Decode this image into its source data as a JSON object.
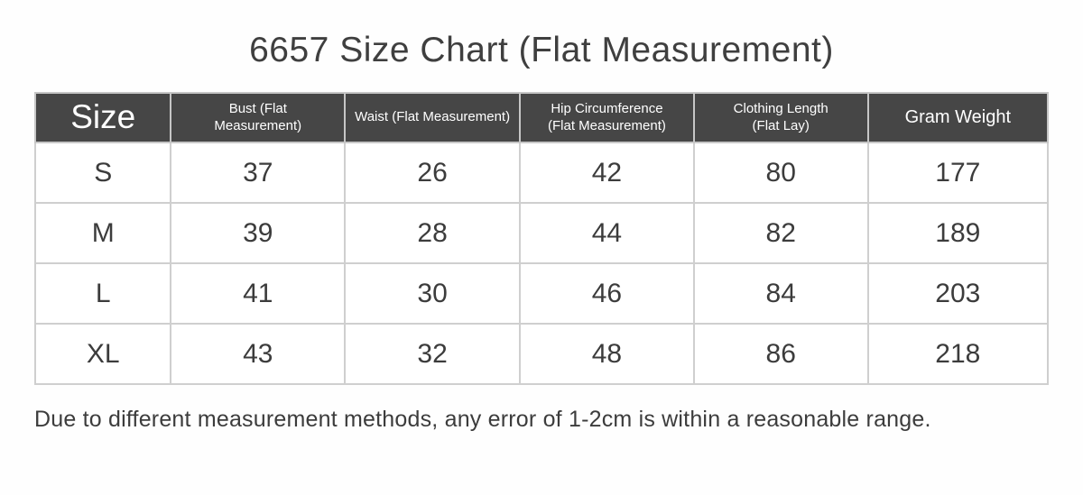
{
  "chart_data": {
    "type": "table",
    "title": "6657 Size Chart (Flat Measurement)",
    "columns": [
      "Size",
      "Bust (Flat Measurement)",
      "Waist (Flat Measurement)",
      "Hip Circumference (Flat Measurement)",
      "Clothing Length (Flat Lay)",
      "Gram Weight"
    ],
    "header_display": [
      "Size",
      "Bust (Flat\nMeasurement)",
      "Waist (Flat Measurement)",
      "Hip Circumference\n(Flat Measurement)",
      "Clothing Length\n(Flat Lay)",
      "Gram Weight"
    ],
    "rows": [
      [
        "S",
        37,
        26,
        42,
        80,
        177
      ],
      [
        "M",
        39,
        28,
        44,
        82,
        189
      ],
      [
        "L",
        41,
        30,
        46,
        84,
        203
      ],
      [
        "XL",
        43,
        32,
        48,
        86,
        218
      ]
    ],
    "footnote": "Due to different measurement methods, any error of 1-2cm is within a reasonable range.",
    "colors": {
      "header_bg": "#464646",
      "header_text": "#ffffff",
      "body_text": "#3c3c3c",
      "grid_line": "#cfcfcf",
      "outer_border": "#9c9c9c"
    },
    "layout_hints": {
      "header_style": "dark band, white labels",
      "grid": "on",
      "title_position": "top-center",
      "footnote_position": "bottom-left"
    }
  }
}
